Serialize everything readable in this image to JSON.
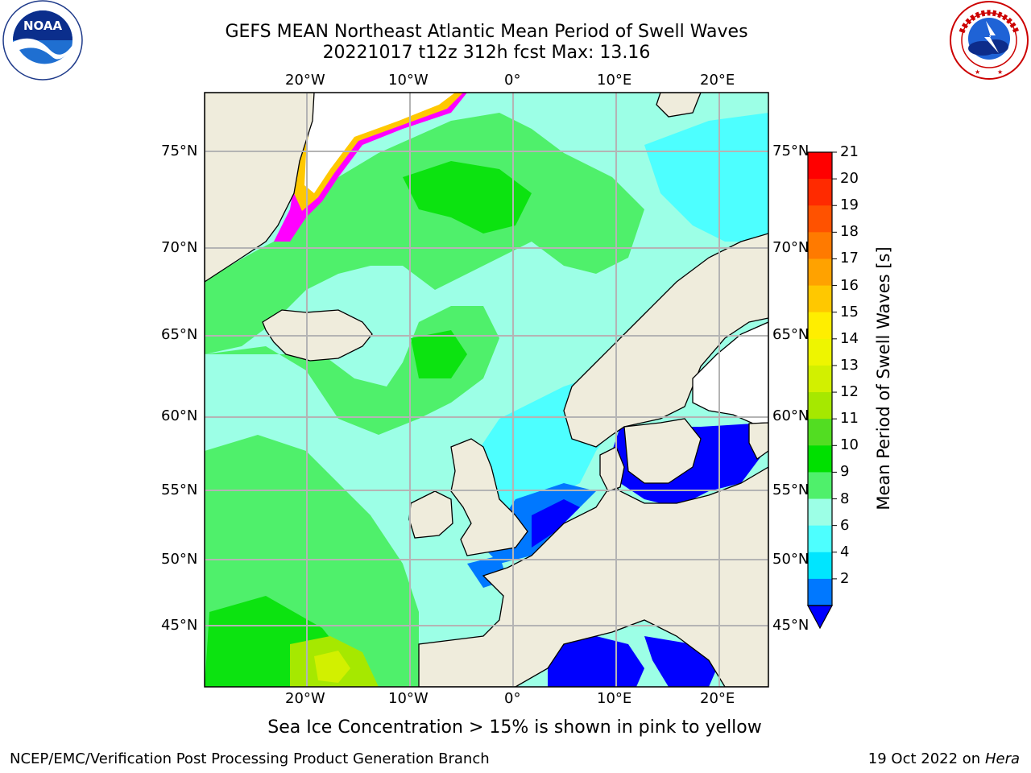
{
  "header": {
    "title_line1": "GEFS MEAN Northeast Atlantic Mean Period of Swell Waves",
    "title_line2": "20221017 t12z 312h fcst   Max: 13.16"
  },
  "logos": {
    "left": {
      "name": "NOAA",
      "text": "NOAA",
      "ring_text": "NATIONAL OCEANIC AND ATMOSPHERIC ADMINISTRATION · U.S. DEPARTMENT OF COMMERCE"
    },
    "right": {
      "name": "National Weather Service",
      "ring_text": "NATIONAL WEATHER SERVICE"
    }
  },
  "map": {
    "lon_ticks": [
      "20°W",
      "10°W",
      "0°",
      "10°E",
      "20°E"
    ],
    "lat_ticks": [
      "75°N",
      "70°N",
      "65°N",
      "60°N",
      "55°N",
      "50°N",
      "45°N"
    ],
    "colors": {
      "land": "#efecdc",
      "ice": "#ffffff",
      "grid": "#b4b4b4"
    }
  },
  "colorbar": {
    "label": "Mean Period of Swell Waves [s]",
    "ticks": [
      "21",
      "20",
      "19",
      "18",
      "17",
      "16",
      "15",
      "14",
      "13",
      "12",
      "11",
      "10",
      "9",
      "8",
      "6",
      "4",
      "2"
    ],
    "colors": [
      "#ff0000",
      "#ff2a00",
      "#ff5200",
      "#ff7a00",
      "#ffa200",
      "#ffc800",
      "#ffee00",
      "#eef500",
      "#d2f000",
      "#a6e800",
      "#52dd22",
      "#00e000",
      "#4ff06b",
      "#9cffe6",
      "#4dffff",
      "#00e5ff",
      "#0078ff",
      "#0000ff"
    ]
  },
  "footer": {
    "note": "Sea Ice Concentration > 15% is shown in pink to yellow",
    "left": "NCEP/EMC/Verification Post Processing Product Generation Branch",
    "right_date": "19 Oct 2022 on ",
    "right_host": "Hera"
  }
}
